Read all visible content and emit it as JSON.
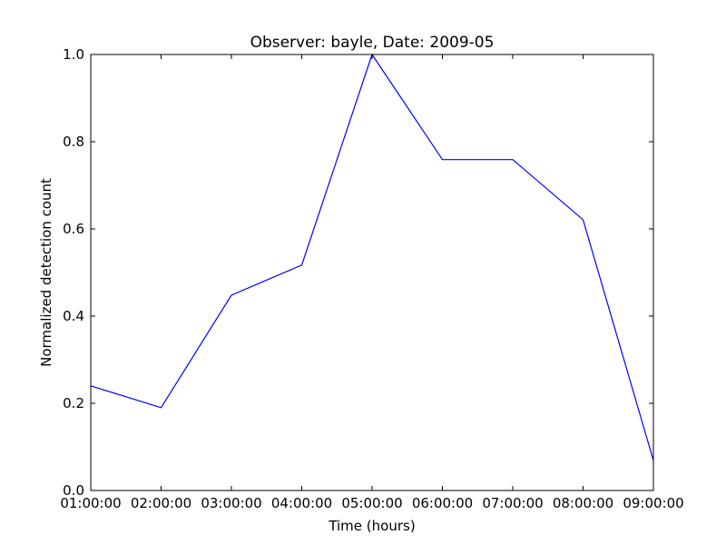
{
  "chart_data": {
    "type": "line",
    "title": "Observer: bayle, Date: 2009-05",
    "xlabel": "Time (hours)",
    "ylabel": "Normalized detection count",
    "categories": [
      "01:00:00",
      "02:00:00",
      "03:00:00",
      "04:00:00",
      "05:00:00",
      "06:00:00",
      "07:00:00",
      "08:00:00",
      "09:00:00"
    ],
    "series": [
      {
        "values": [
          0.24,
          0.19,
          0.448,
          0.517,
          1.0,
          0.759,
          0.759,
          0.621,
          0.069
        ]
      }
    ],
    "ylim": [
      0,
      1.0
    ],
    "yticks": [
      "0.0",
      "0.2",
      "0.4",
      "0.6",
      "0.8",
      "1.0"
    ],
    "grid": false,
    "line_color": "#0000ff"
  }
}
